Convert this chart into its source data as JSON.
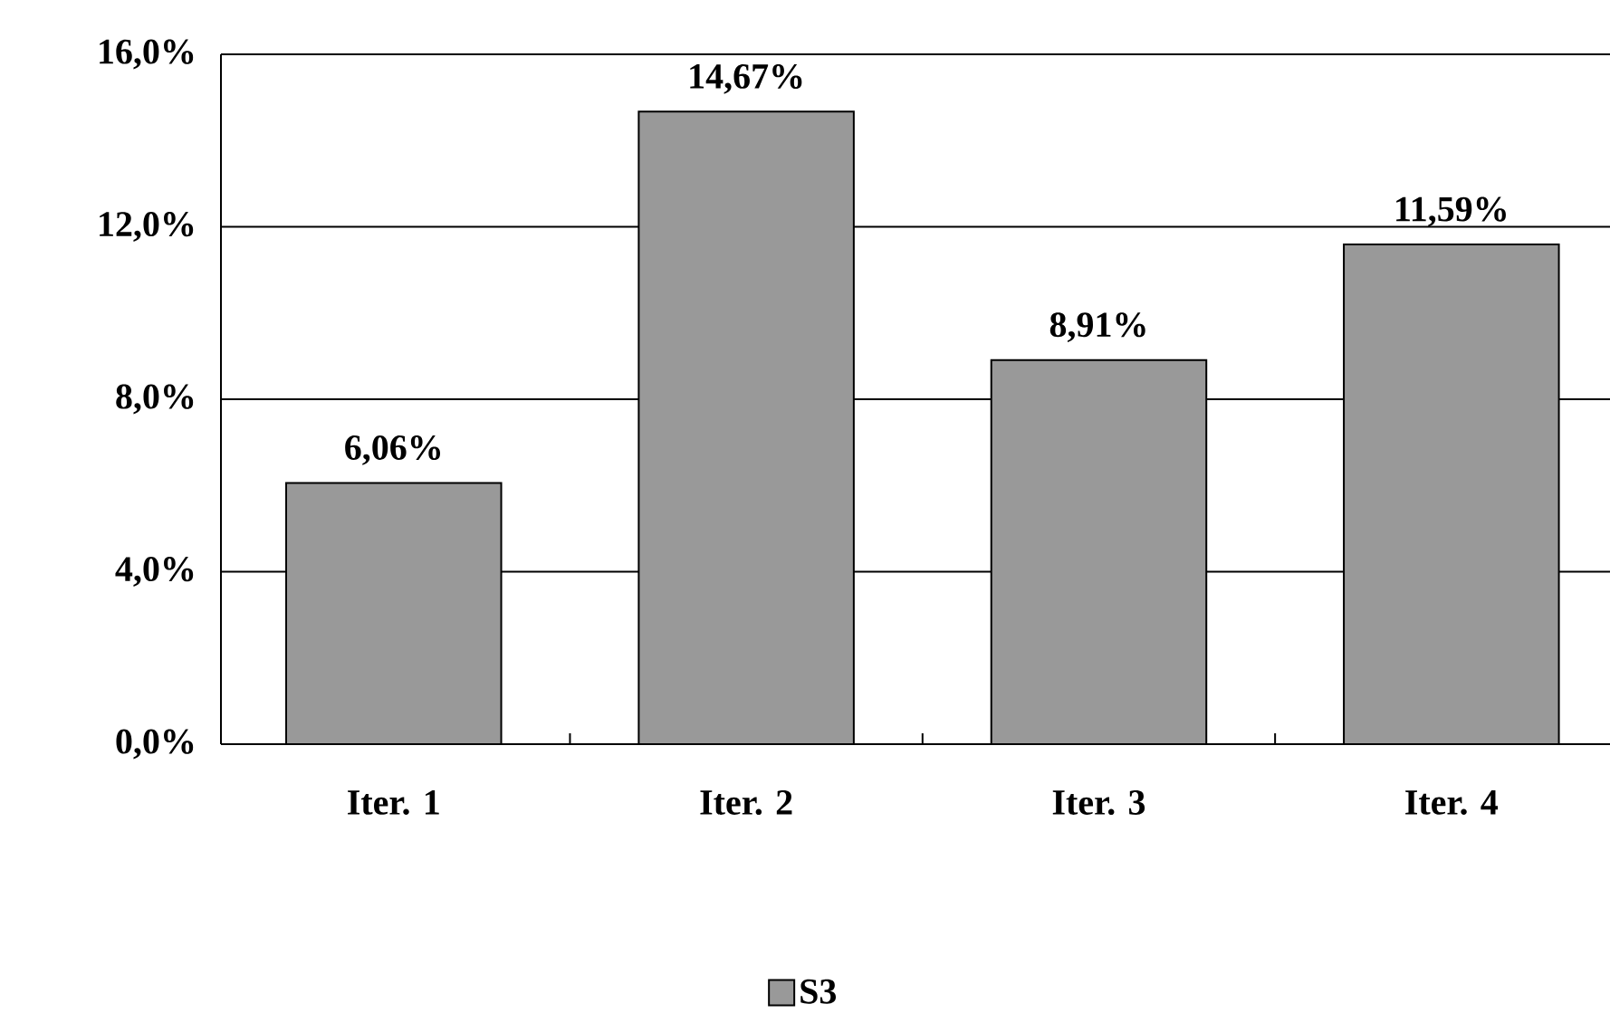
{
  "chart_data": {
    "type": "bar",
    "categories": [
      "Iter. 1",
      "Iter. 2",
      "Iter. 3",
      "Iter. 4"
    ],
    "series": [
      {
        "name": "S3",
        "color": "#999999",
        "values": [
          6.06,
          14.67,
          8.91,
          11.59
        ]
      }
    ],
    "value_labels": [
      "6,06%",
      "14,67%",
      "8,91%",
      "11,59%"
    ],
    "ylim": [
      0,
      16
    ],
    "yticks": [
      {
        "value": 0,
        "label": "0,0%"
      },
      {
        "value": 4,
        "label": "4,0%"
      },
      {
        "value": 8,
        "label": "8,0%"
      },
      {
        "value": 12,
        "label": "12,0%"
      },
      {
        "value": 16,
        "label": "16,0%"
      }
    ],
    "grid": "y",
    "legend": "bottom"
  }
}
